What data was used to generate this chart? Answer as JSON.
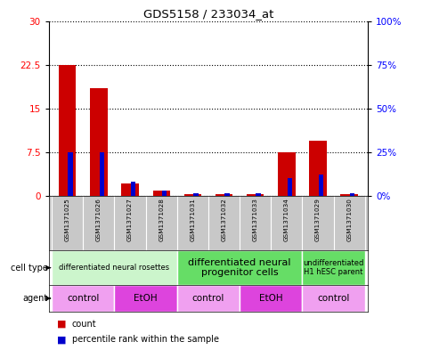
{
  "title": "GDS5158 / 233034_at",
  "samples": [
    "GSM1371025",
    "GSM1371026",
    "GSM1371027",
    "GSM1371028",
    "GSM1371031",
    "GSM1371032",
    "GSM1371033",
    "GSM1371034",
    "GSM1371029",
    "GSM1371030"
  ],
  "count_values": [
    22.5,
    18.5,
    2.2,
    1.0,
    0.3,
    0.3,
    0.3,
    7.5,
    9.5,
    0.3
  ],
  "percentile_values": [
    25,
    25,
    8,
    3,
    1.5,
    1.5,
    1.5,
    10,
    12,
    1.5
  ],
  "ylim_left": [
    0,
    30
  ],
  "ylim_right": [
    0,
    100
  ],
  "yticks_left": [
    0,
    7.5,
    15,
    22.5,
    30
  ],
  "yticks_right": [
    0,
    25,
    50,
    75,
    100
  ],
  "ytick_labels_left": [
    "0",
    "7.5",
    "15",
    "22.5",
    "30"
  ],
  "ytick_labels_right": [
    "0%",
    "25%",
    "50%",
    "75%",
    "100%"
  ],
  "bar_color": "#cc0000",
  "percentile_color": "#0000cc",
  "bg_color": "#ffffff",
  "cell_type_groups": [
    {
      "label": "differentiated neural rosettes",
      "start": 0,
      "end": 4,
      "color": "#ccf5cc",
      "fontsize": 6
    },
    {
      "label": "differentiated neural\nprogenitor cells",
      "start": 4,
      "end": 8,
      "color": "#66dd66",
      "fontsize": 8
    },
    {
      "label": "undifferentiated\nH1 hESC parent",
      "start": 8,
      "end": 10,
      "color": "#66dd66",
      "fontsize": 6
    }
  ],
  "agent_groups": [
    {
      "label": "control",
      "start": 0,
      "end": 2,
      "color": "#f0a0f0"
    },
    {
      "label": "EtOH",
      "start": 2,
      "end": 4,
      "color": "#dd44dd"
    },
    {
      "label": "control",
      "start": 4,
      "end": 6,
      "color": "#f0a0f0"
    },
    {
      "label": "EtOH",
      "start": 6,
      "end": 8,
      "color": "#dd44dd"
    },
    {
      "label": "control",
      "start": 8,
      "end": 10,
      "color": "#f0a0f0"
    }
  ],
  "legend_count_color": "#cc0000",
  "legend_percentile_color": "#0000cc",
  "bar_width": 0.55,
  "sample_bg_color": "#c8c8c8"
}
